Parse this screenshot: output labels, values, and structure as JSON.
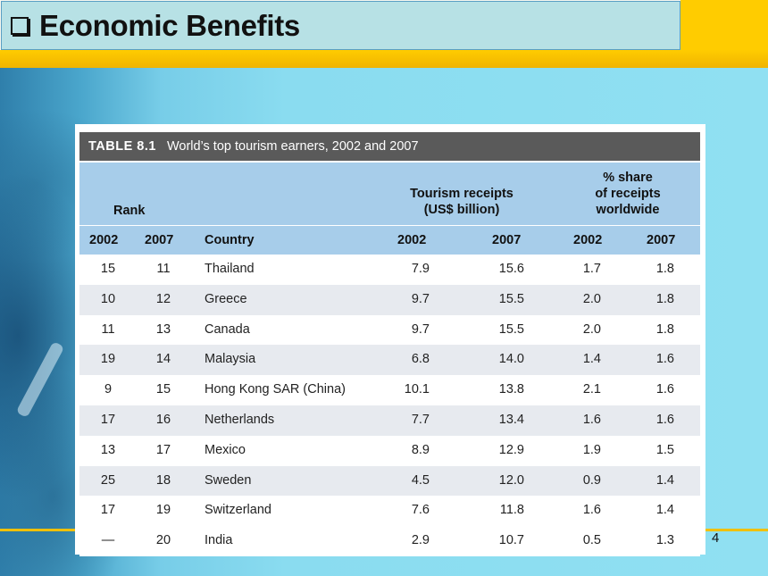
{
  "slide": {
    "title": "Economic Benefits",
    "page_number": "4"
  },
  "table": {
    "label": "TABLE 8.1",
    "caption": "World’s top tourism earners, 2002 and 2007",
    "group_rank": "Rank",
    "group_receipts": [
      "Tourism receipts",
      "(US$ billion)"
    ],
    "group_share": [
      "% share",
      "of receipts",
      "worldwide"
    ],
    "columns": [
      "2002",
      "2007",
      "Country",
      "2002",
      "2007",
      "2002",
      "2007"
    ],
    "rows": [
      [
        "15",
        "11",
        "Thailand",
        "7.9",
        "15.6",
        "1.7",
        "1.8"
      ],
      [
        "10",
        "12",
        "Greece",
        "9.7",
        "15.5",
        "2.0",
        "1.8"
      ],
      [
        "11",
        "13",
        "Canada",
        "9.7",
        "15.5",
        "2.0",
        "1.8"
      ],
      [
        "19",
        "14",
        "Malaysia",
        "6.8",
        "14.0",
        "1.4",
        "1.6"
      ],
      [
        "9",
        "15",
        "Hong Kong SAR (China)",
        "10.1",
        "13.8",
        "2.1",
        "1.6"
      ],
      [
        "17",
        "16",
        "Netherlands",
        "7.7",
        "13.4",
        "1.6",
        "1.6"
      ],
      [
        "13",
        "17",
        "Mexico",
        "8.9",
        "12.9",
        "1.9",
        "1.5"
      ],
      [
        "25",
        "18",
        "Sweden",
        "4.5",
        "12.0",
        "0.9",
        "1.4"
      ],
      [
        "17",
        "19",
        "Switzerland",
        "7.6",
        "11.8",
        "1.6",
        "1.4"
      ],
      [
        "—",
        "20",
        "India",
        "2.9",
        "10.7",
        "0.5",
        "1.3"
      ]
    ]
  }
}
